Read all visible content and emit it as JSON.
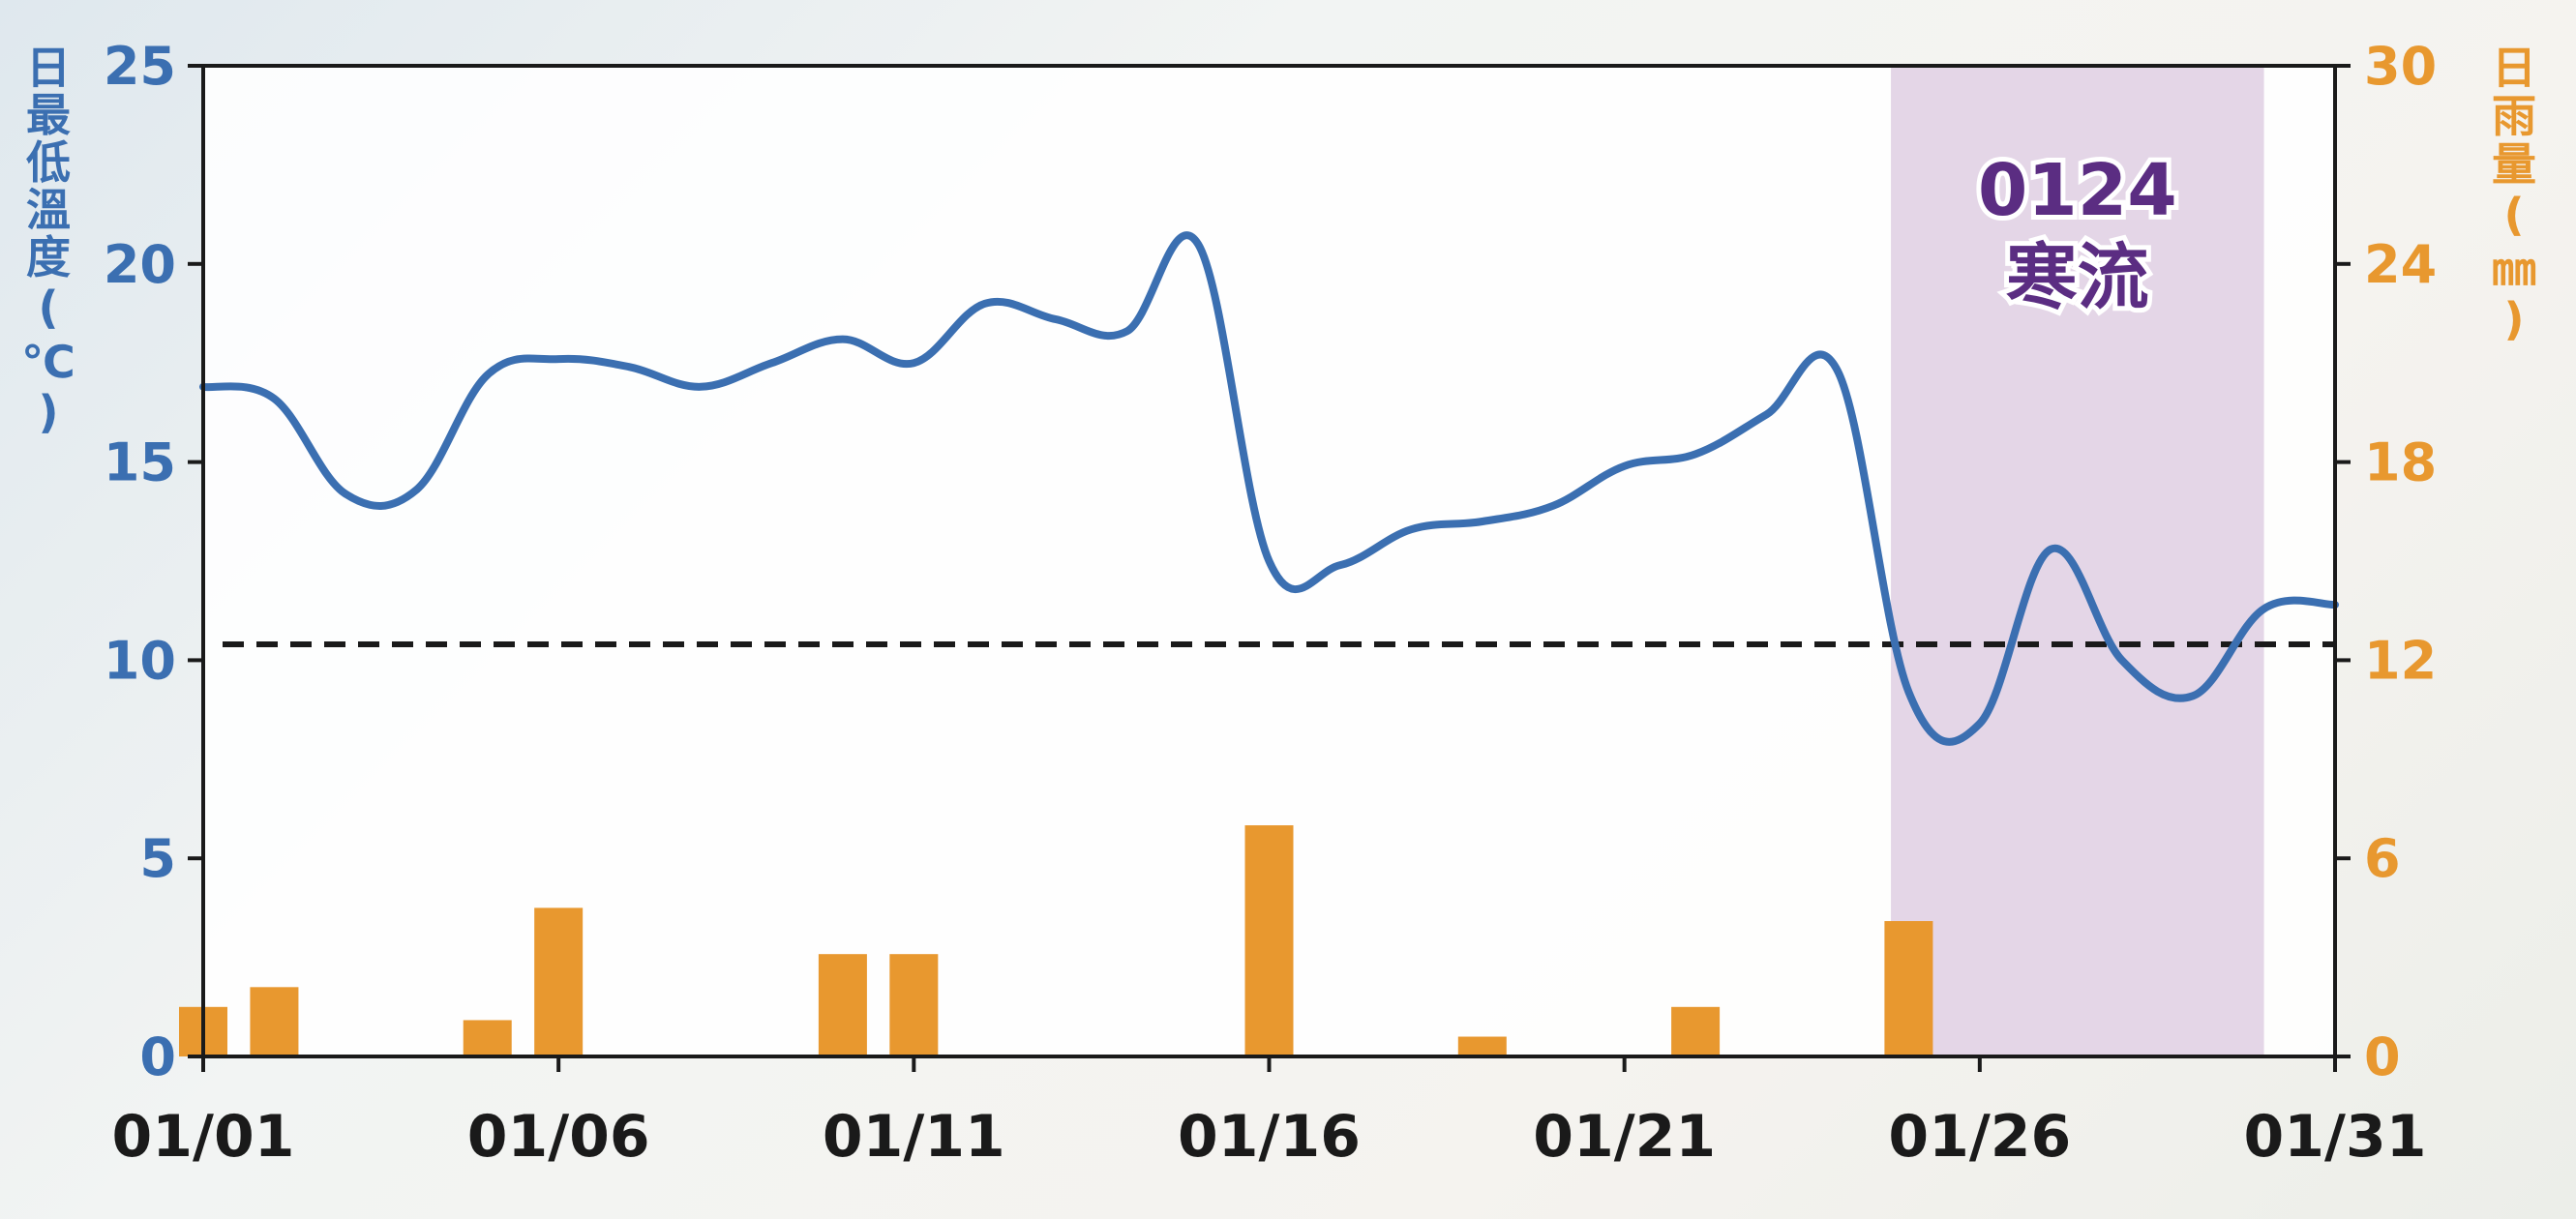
{
  "chart_data": {
    "type": "bar+line",
    "x_dates": [
      "01/01",
      "01/02",
      "01/03",
      "01/04",
      "01/05",
      "01/06",
      "01/07",
      "01/08",
      "01/09",
      "01/10",
      "01/11",
      "01/12",
      "01/13",
      "01/14",
      "01/15",
      "01/16",
      "01/17",
      "01/18",
      "01/19",
      "01/20",
      "01/21",
      "01/22",
      "01/23",
      "01/24",
      "01/25",
      "01/26",
      "01/27",
      "01/28",
      "01/29",
      "01/30",
      "01/31"
    ],
    "x_tick_labels": [
      "01/01",
      "01/06",
      "01/11",
      "01/16",
      "01/21",
      "01/26",
      "01/31"
    ],
    "left_axis": {
      "label": "日最低溫度(℃)",
      "label_chars": [
        "日",
        "最",
        "低",
        "溫",
        "度",
        "(",
        "℃",
        ")"
      ],
      "range": [
        0,
        25
      ],
      "ticks": [
        0,
        5,
        10,
        15,
        20,
        25
      ],
      "color": "#3b6fb1"
    },
    "right_axis": {
      "label": "日雨量(㎜)",
      "label_chars": [
        "日",
        "雨",
        "量",
        "(",
        "㎜",
        ")"
      ],
      "range": [
        0,
        30
      ],
      "ticks": [
        0,
        6,
        12,
        18,
        24,
        30
      ],
      "color": "#e8982f"
    },
    "series": [
      {
        "type": "line",
        "axis": "left",
        "color": "#3b6fb1",
        "values": [
          16.9,
          16.6,
          14.2,
          14.3,
          17.2,
          17.6,
          17.4,
          16.9,
          17.5,
          18.1,
          17.5,
          19.0,
          18.6,
          18.3,
          20.5,
          12.5,
          12.4,
          13.3,
          13.5,
          13.9,
          14.9,
          15.2,
          16.2,
          17.3,
          9.2,
          8.4,
          12.8,
          10.0,
          9.1,
          11.3,
          11.4
        ]
      },
      {
        "type": "bar",
        "axis": "right",
        "color": "#e8982f",
        "values": [
          1.5,
          2.1,
          0,
          0,
          1.1,
          4.5,
          0,
          0,
          0,
          3.1,
          3.1,
          0,
          0,
          0,
          0,
          7.0,
          0,
          0,
          0.6,
          0,
          0,
          1.5,
          0,
          0,
          4.1,
          0,
          0,
          0,
          0,
          0,
          0
        ]
      }
    ],
    "reference_line": {
      "value": 10.4,
      "axis": "left",
      "style": "dashed",
      "color": "#1a1a1a"
    },
    "highlight_band": {
      "start": 23.75,
      "end": 29.0,
      "color": "#e4d6e7",
      "label_lines": [
        "0124",
        "寒流"
      ],
      "label_color": "#5b2d82"
    },
    "grid": false
  }
}
